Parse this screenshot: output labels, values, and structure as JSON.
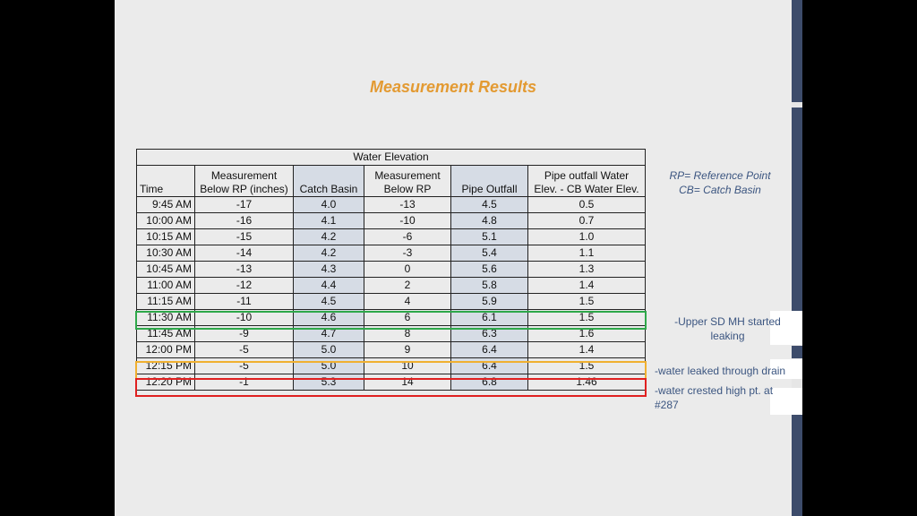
{
  "title": "Measurement Results",
  "table": {
    "group_header": "Water Elevation",
    "headers": [
      [
        "Time"
      ],
      [
        "Measurement",
        "Below RP (inches)"
      ],
      [
        "Catch Basin"
      ],
      [
        "Measurement",
        "Below RP"
      ],
      [
        "Pipe Outfall"
      ],
      [
        "Pipe outfall Water",
        "Elev. - CB Water Elev."
      ]
    ],
    "rows": [
      [
        "9:45 AM",
        "-17",
        "4.0",
        "-13",
        "4.5",
        "0.5"
      ],
      [
        "10:00 AM",
        "-16",
        "4.1",
        "-10",
        "4.8",
        "0.7"
      ],
      [
        "10:15 AM",
        "-15",
        "4.2",
        "-6",
        "5.1",
        "1.0"
      ],
      [
        "10:30 AM",
        "-14",
        "4.2",
        "-3",
        "5.4",
        "1.1"
      ],
      [
        "10:45 AM",
        "-13",
        "4.3",
        "0",
        "5.6",
        "1.3"
      ],
      [
        "11:00 AM",
        "-12",
        "4.4",
        "2",
        "5.8",
        "1.4"
      ],
      [
        "11:15 AM",
        "-11",
        "4.5",
        "4",
        "5.9",
        "1.5"
      ],
      [
        "11:30 AM",
        "-10",
        "4.6",
        "6",
        "6.1",
        "1.5"
      ],
      [
        "11:45 AM",
        "-9",
        "4.7",
        "8",
        "6.3",
        "1.6"
      ],
      [
        "12:00 PM",
        "-5",
        "5.0",
        "9",
        "6.4",
        "1.4"
      ],
      [
        "12:15 PM",
        "-5",
        "5.0",
        "10",
        "6.4",
        "1.5"
      ],
      [
        "12:20 PM",
        "-1",
        "5.3",
        "14",
        "6.8",
        "1.46"
      ]
    ]
  },
  "legend": [
    "RP= Reference Point",
    "CB= Catch Basin"
  ],
  "annotations": [
    "-Upper SD MH started leaking",
    "-water leaked through drain",
    "-water crested high pt. at #287"
  ]
}
